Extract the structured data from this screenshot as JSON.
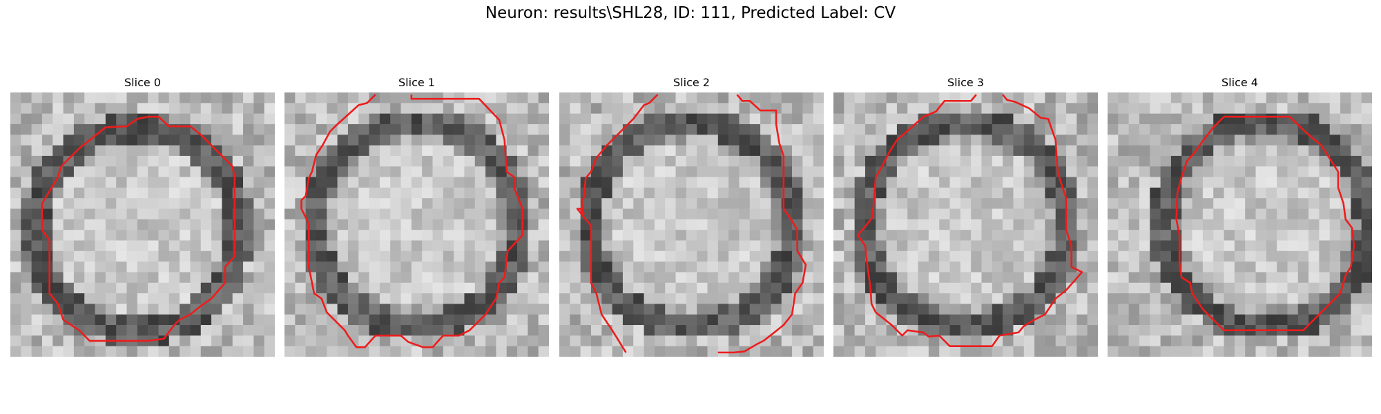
{
  "figure": {
    "title": "Neuron: results\\SHL28, ID: 111, Predicted Label: CV"
  },
  "panels": [
    {
      "title": "Slice 0"
    },
    {
      "title": "Slice 1"
    },
    {
      "title": "Slice 2"
    },
    {
      "title": "Slice 3"
    },
    {
      "title": "Slice 4"
    }
  ],
  "colors": {
    "contour": "#ee1c1c",
    "background": "#ffffff"
  },
  "image": {
    "kind": "grayscale EM micrograph tiles",
    "grid_cells": 25
  }
}
